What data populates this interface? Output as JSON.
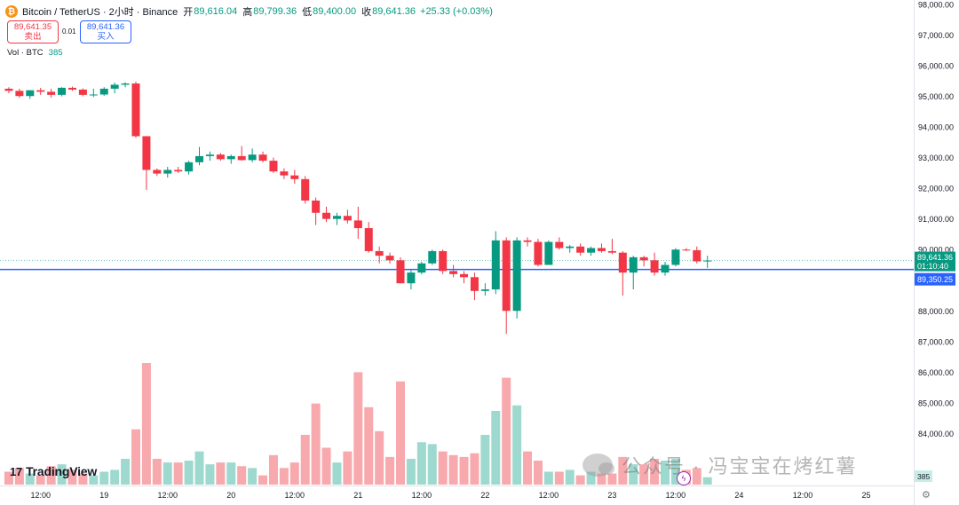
{
  "header": {
    "symbol_icon": "₿",
    "title": "Bitcoin / TetherUS · 2小时 · Binance",
    "open_label": "开",
    "open": "89,616.04",
    "high_label": "高",
    "high": "89,799.36",
    "low_label": "低",
    "low": "89,400.00",
    "close_label": "收",
    "close": "89,641.36",
    "change": "+25.33 (+0.03%)"
  },
  "trade": {
    "sell_price": "89,641.35",
    "sell_label": "卖出",
    "spread": "0.01",
    "buy_price": "89,641.36",
    "buy_label": "买入"
  },
  "volume": {
    "label": "Vol · BTC",
    "value": "385"
  },
  "branding": {
    "logo_text": "TradingView",
    "logo_mark": "17"
  },
  "watermark": {
    "text": "公众号 · 冯宝宝在烤红薯"
  },
  "colors": {
    "up": "#089981",
    "down": "#f23645",
    "up_vol": "#9ed9cf",
    "down_vol": "#f7a9ad",
    "hline": "#2962ff"
  },
  "chart_data": {
    "type": "candlestick",
    "title": "Bitcoin / TetherUS · 2小时 · Binance",
    "interval": "2h",
    "ylim": [
      83200,
      98000
    ],
    "y_ticks": [
      "98,000.00",
      "97,000.00",
      "96,000.00",
      "95,000.00",
      "94,000.00",
      "93,000.00",
      "92,000.00",
      "91,000.00",
      "90,000.00",
      "89,000.00",
      "88,000.00",
      "87,000.00",
      "86,000.00",
      "85,000.00",
      "84,000.00"
    ],
    "x_ticks": [
      {
        "i": 3,
        "label": "12:00"
      },
      {
        "i": 9,
        "label": "19"
      },
      {
        "i": 15,
        "label": "12:00"
      },
      {
        "i": 21,
        "label": "20"
      },
      {
        "i": 27,
        "label": "12:00"
      },
      {
        "i": 33,
        "label": "21"
      },
      {
        "i": 39,
        "label": "12:00"
      },
      {
        "i": 45,
        "label": "22"
      },
      {
        "i": 51,
        "label": "12:00"
      },
      {
        "i": 57,
        "label": "23"
      },
      {
        "i": 63,
        "label": "12:00"
      },
      {
        "i": 69,
        "label": "24"
      },
      {
        "i": 75,
        "label": "12:00"
      },
      {
        "i": 81,
        "label": "25"
      }
    ],
    "x_slot_start": 4,
    "x_slot_width": 11.92,
    "last_price_label": "89,641.36",
    "countdown_label": "01:10:40",
    "hline_value": 89350.25,
    "hline_label": "89,350.25",
    "volume_tag": "385",
    "candles": [
      {
        "o": 95250,
        "h": 95300,
        "l": 95100,
        "c": 95180,
        "v": 7
      },
      {
        "o": 95180,
        "h": 95250,
        "l": 94950,
        "c": 95010,
        "v": 9
      },
      {
        "o": 95010,
        "h": 95200,
        "l": 94920,
        "c": 95200,
        "v": 6
      },
      {
        "o": 95200,
        "h": 95280,
        "l": 95050,
        "c": 95150,
        "v": 5
      },
      {
        "o": 95150,
        "h": 95250,
        "l": 94960,
        "c": 95050,
        "v": 10
      },
      {
        "o": 95050,
        "h": 95300,
        "l": 95000,
        "c": 95280,
        "v": 11
      },
      {
        "o": 95280,
        "h": 95320,
        "l": 95180,
        "c": 95220,
        "v": 8
      },
      {
        "o": 95220,
        "h": 95260,
        "l": 95000,
        "c": 95050,
        "v": 6
      },
      {
        "o": 95050,
        "h": 95250,
        "l": 94980,
        "c": 95060,
        "v": 5
      },
      {
        "o": 95060,
        "h": 95300,
        "l": 95020,
        "c": 95250,
        "v": 7
      },
      {
        "o": 95250,
        "h": 95450,
        "l": 95100,
        "c": 95380,
        "v": 8
      },
      {
        "o": 95380,
        "h": 95460,
        "l": 95300,
        "c": 95420,
        "v": 14
      },
      {
        "o": 95420,
        "h": 95480,
        "l": 93650,
        "c": 93700,
        "v": 30
      },
      {
        "o": 93700,
        "h": 93700,
        "l": 91950,
        "c": 92600,
        "v": 66
      },
      {
        "o": 92600,
        "h": 92650,
        "l": 92400,
        "c": 92480,
        "v": 14
      },
      {
        "o": 92480,
        "h": 92700,
        "l": 92350,
        "c": 92600,
        "v": 12
      },
      {
        "o": 92600,
        "h": 92700,
        "l": 92500,
        "c": 92550,
        "v": 12
      },
      {
        "o": 92550,
        "h": 92900,
        "l": 92450,
        "c": 92850,
        "v": 13
      },
      {
        "o": 92850,
        "h": 93350,
        "l": 92750,
        "c": 93050,
        "v": 18
      },
      {
        "o": 93050,
        "h": 93200,
        "l": 92900,
        "c": 93100,
        "v": 11
      },
      {
        "o": 93100,
        "h": 93150,
        "l": 92900,
        "c": 92950,
        "v": 12
      },
      {
        "o": 92950,
        "h": 93100,
        "l": 92800,
        "c": 93050,
        "v": 12
      },
      {
        "o": 93050,
        "h": 93380,
        "l": 92900,
        "c": 92920,
        "v": 10
      },
      {
        "o": 92920,
        "h": 93300,
        "l": 92850,
        "c": 93100,
        "v": 9
      },
      {
        "o": 93100,
        "h": 93200,
        "l": 92850,
        "c": 92900,
        "v": 5
      },
      {
        "o": 92900,
        "h": 93000,
        "l": 92500,
        "c": 92550,
        "v": 16
      },
      {
        "o": 92550,
        "h": 92650,
        "l": 92300,
        "c": 92420,
        "v": 9
      },
      {
        "o": 92420,
        "h": 92600,
        "l": 92150,
        "c": 92300,
        "v": 12
      },
      {
        "o": 92300,
        "h": 92400,
        "l": 91500,
        "c": 91600,
        "v": 27
      },
      {
        "o": 91600,
        "h": 91700,
        "l": 90800,
        "c": 91200,
        "v": 44
      },
      {
        "o": 91200,
        "h": 91400,
        "l": 90900,
        "c": 91000,
        "v": 20
      },
      {
        "o": 91000,
        "h": 91200,
        "l": 90800,
        "c": 91100,
        "v": 12
      },
      {
        "o": 91100,
        "h": 91300,
        "l": 90850,
        "c": 90950,
        "v": 18
      },
      {
        "o": 90950,
        "h": 91400,
        "l": 90350,
        "c": 90700,
        "v": 61
      },
      {
        "o": 90700,
        "h": 90900,
        "l": 89900,
        "c": 89950,
        "v": 42
      },
      {
        "o": 89950,
        "h": 90100,
        "l": 89550,
        "c": 89800,
        "v": 29
      },
      {
        "o": 89800,
        "h": 89900,
        "l": 89550,
        "c": 89650,
        "v": 15
      },
      {
        "o": 89650,
        "h": 89750,
        "l": 88900,
        "c": 88900,
        "v": 56
      },
      {
        "o": 88900,
        "h": 89350,
        "l": 88700,
        "c": 89250,
        "v": 14
      },
      {
        "o": 89250,
        "h": 89600,
        "l": 89200,
        "c": 89550,
        "v": 23
      },
      {
        "o": 89550,
        "h": 90000,
        "l": 89500,
        "c": 89950,
        "v": 22
      },
      {
        "o": 89950,
        "h": 90000,
        "l": 89200,
        "c": 89300,
        "v": 18
      },
      {
        "o": 89300,
        "h": 89500,
        "l": 89100,
        "c": 89200,
        "v": 16
      },
      {
        "o": 89200,
        "h": 89300,
        "l": 88900,
        "c": 89100,
        "v": 15
      },
      {
        "o": 89100,
        "h": 89250,
        "l": 88350,
        "c": 88650,
        "v": 17
      },
      {
        "o": 88650,
        "h": 88900,
        "l": 88500,
        "c": 88700,
        "v": 27
      },
      {
        "o": 88700,
        "h": 90600,
        "l": 88550,
        "c": 90300,
        "v": 40
      },
      {
        "o": 90300,
        "h": 90400,
        "l": 87250,
        "c": 88000,
        "v": 58
      },
      {
        "o": 88000,
        "h": 90400,
        "l": 87750,
        "c": 90300,
        "v": 43
      },
      {
        "o": 90300,
        "h": 90400,
        "l": 90100,
        "c": 90250,
        "v": 18
      },
      {
        "o": 90250,
        "h": 90350,
        "l": 89450,
        "c": 89500,
        "v": 13
      },
      {
        "o": 89500,
        "h": 90300,
        "l": 89500,
        "c": 90250,
        "v": 7
      },
      {
        "o": 90250,
        "h": 90400,
        "l": 90000,
        "c": 90050,
        "v": 7
      },
      {
        "o": 90050,
        "h": 90150,
        "l": 89900,
        "c": 90100,
        "v": 8
      },
      {
        "o": 90100,
        "h": 90200,
        "l": 89800,
        "c": 89900,
        "v": 5
      },
      {
        "o": 89900,
        "h": 90100,
        "l": 89800,
        "c": 90050,
        "v": 7
      },
      {
        "o": 90050,
        "h": 90200,
        "l": 89900,
        "c": 89950,
        "v": 6
      },
      {
        "o": 89950,
        "h": 90350,
        "l": 89850,
        "c": 89900,
        "v": 6
      },
      {
        "o": 89900,
        "h": 89950,
        "l": 88500,
        "c": 89250,
        "v": 15
      },
      {
        "o": 89250,
        "h": 89800,
        "l": 88700,
        "c": 89750,
        "v": 11
      },
      {
        "o": 89750,
        "h": 89800,
        "l": 89450,
        "c": 89650,
        "v": 11
      },
      {
        "o": 89650,
        "h": 89900,
        "l": 89150,
        "c": 89250,
        "v": 14
      },
      {
        "o": 89250,
        "h": 89600,
        "l": 89150,
        "c": 89500,
        "v": 13
      },
      {
        "o": 89500,
        "h": 90050,
        "l": 89450,
        "c": 90000,
        "v": 14
      },
      {
        "o": 90000,
        "h": 90050,
        "l": 89950,
        "c": 89980,
        "v": 8
      },
      {
        "o": 89980,
        "h": 90100,
        "l": 89550,
        "c": 89616,
        "v": 9
      },
      {
        "o": 89616,
        "h": 89799,
        "l": 89400,
        "c": 89641,
        "v": 4
      }
    ]
  }
}
